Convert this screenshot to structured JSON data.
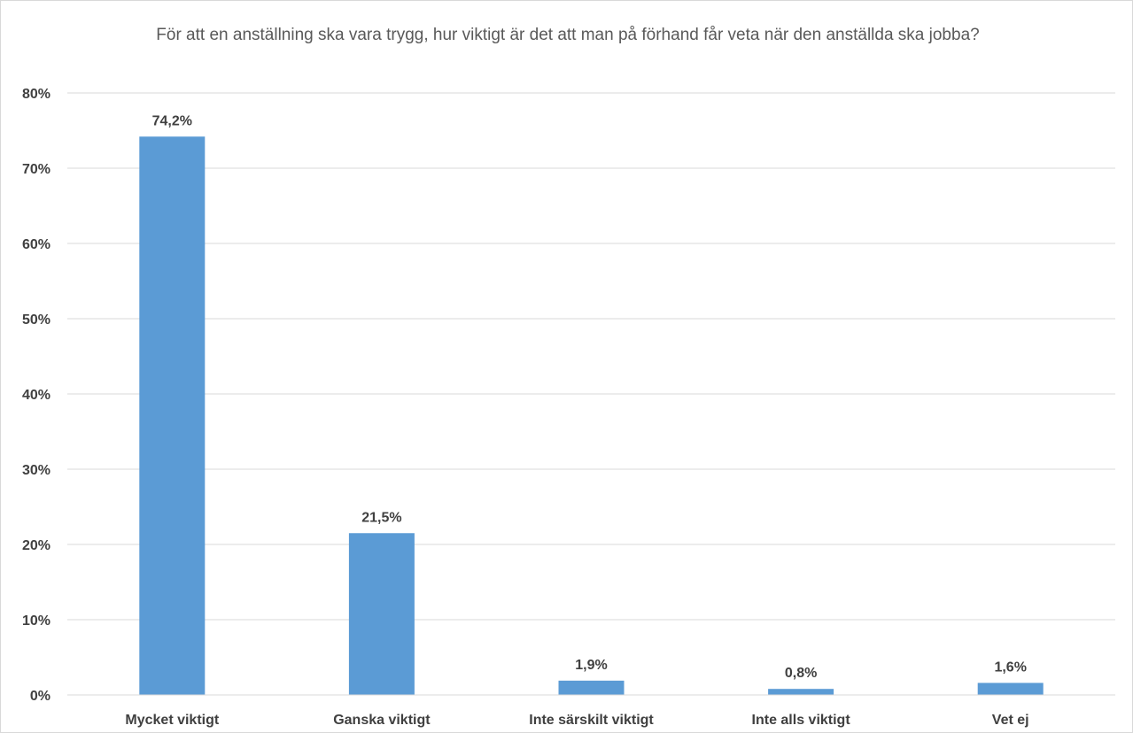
{
  "chart_data": {
    "type": "bar",
    "title": "För att en anställning ska vara trygg, hur viktigt är det att man på förhand får veta när den anställda ska jobba?",
    "categories": [
      "Mycket viktigt",
      "Ganska viktigt",
      "Inte särskilt viktigt",
      "Inte alls viktigt",
      "Vet ej"
    ],
    "values": [
      74.2,
      21.5,
      1.9,
      0.8,
      1.6
    ],
    "data_labels": [
      "74,2%",
      "21,5%",
      "1,9%",
      "0,8%",
      "1,6%"
    ],
    "ylim": [
      0,
      80
    ],
    "yticks": [
      0,
      10,
      20,
      30,
      40,
      50,
      60,
      70,
      80
    ],
    "ytick_labels": [
      "0%",
      "10%",
      "20%",
      "30%",
      "40%",
      "50%",
      "60%",
      "70%",
      "80%"
    ],
    "grid": true,
    "legend": "none",
    "colors": {
      "bar": "#5b9bd5",
      "grid": "#d9d9d9",
      "axis": "#d9d9d9"
    }
  }
}
